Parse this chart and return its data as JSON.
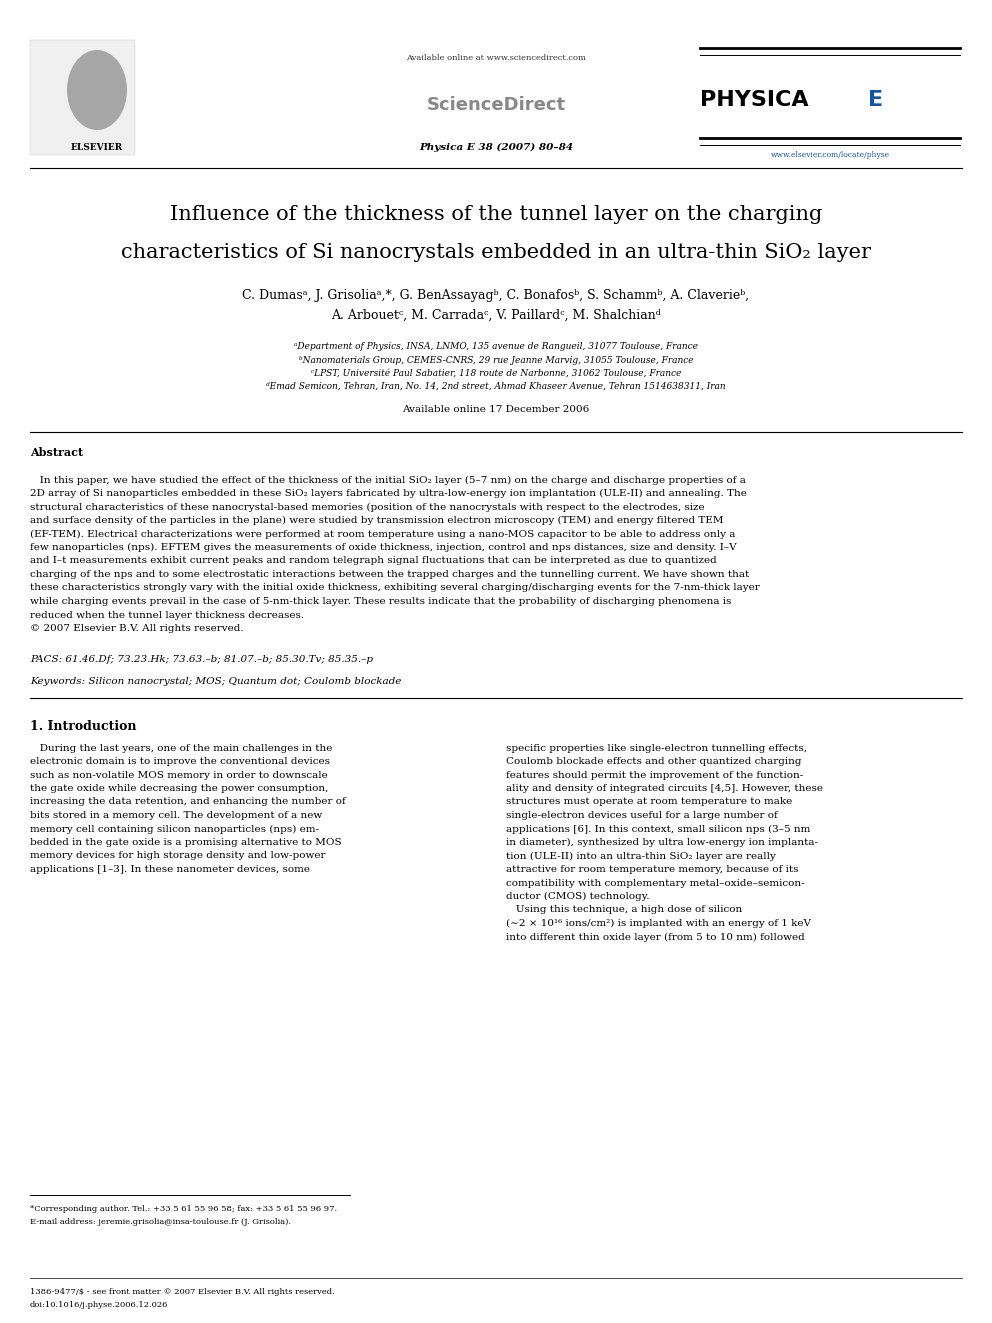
{
  "page_width": 9.92,
  "page_height": 13.23,
  "dpi": 100,
  "background_color": "#ffffff",
  "header": {
    "available_online_text": "Available online at www.sciencedirect.com",
    "sciencedirect_text": "ScienceDirect",
    "journal_text": "Physica E 38 (2007) 80–84",
    "physica_e_text": "PHYSICA E",
    "elsevier_text": "ELSEVIER",
    "url_text": "www.elsevier.com/locate/physe"
  },
  "title_line1": "Influence of the thickness of the tunnel layer on the charging",
  "title_line2": "characteristics of Si nanocrystals embedded in an ultra-thin SiO₂ layer",
  "author_line1": "C. Dumasᵃ, J. Grisoliaᵃ,*, G. BenAssayagᵇ, C. Bonafosᵇ, S. Schammᵇ, A. Claverieᵇ,",
  "author_line2": "A. Arbouetᶜ, M. Carradaᶜ, V. Paillardᶜ, M. Shalchianᵈ",
  "aff1": "ᵃDepartment of Physics, INSA, LNMO, 135 avenue de Rangueil, 31077 Toulouse, France",
  "aff2": "ᵇNanomaterials Group, CEMES-CNRS, 29 rue Jeanne Marvig, 31055 Toulouse, France",
  "aff3": "ᶜLPST, Université Paul Sabatier, 118 route de Narbonne, 31062 Toulouse, France",
  "aff4": "ᵈEmad Semicon, Tehran, Iran, No. 14, 2nd street, Ahmad Khaseer Avenue, Tehran 1514638311, Iran",
  "available_online": "Available online 17 December 2006",
  "abstract_title": "Abstract",
  "abstract_lines": [
    "   In this paper, we have studied the effect of the thickness of the initial SiO₂ layer (5–7 nm) on the charge and discharge properties of a",
    "2D array of Si nanoparticles embedded in these SiO₂ layers fabricated by ultra-low-energy ion implantation (ULE-II) and annealing. The",
    "structural characteristics of these nanocrystal-based memories (position of the nanocrystals with respect to the electrodes, size",
    "and surface density of the particles in the plane) were studied by transmission electron microscopy (TEM) and energy filtered TEM",
    "(EF-TEM). Electrical characterizations were performed at room temperature using a nano-MOS capacitor to be able to address only a",
    "few nanoparticles (nps). EFTEM gives the measurements of oxide thickness, injection, control and nps distances, size and density. I–V",
    "and I–t measurements exhibit current peaks and random telegraph signal fluctuations that can be interpreted as due to quantized",
    "charging of the nps and to some electrostatic interactions between the trapped charges and the tunnelling current. We have shown that",
    "these characteristics strongly vary with the initial oxide thickness, exhibiting several charging/discharging events for the 7-nm-thick layer",
    "while charging events prevail in the case of 5-nm-thick layer. These results indicate that the probability of discharging phenomena is",
    "reduced when the tunnel layer thickness decreases.",
    "© 2007 Elsevier B.V. All rights reserved."
  ],
  "pacs_text": "PACS: 61.46.Df; 73.23.Hk; 73.63.–b; 81.07.–b; 85.30.Tv; 85.35.–p",
  "keywords_text": "Keywords: Silicon nanocrystal; MOS; Quantum dot; Coulomb blockade",
  "intro_title": "1. Introduction",
  "intro_left_lines": [
    "   During the last years, one of the main challenges in the",
    "electronic domain is to improve the conventional devices",
    "such as non-volatile MOS memory in order to downscale",
    "the gate oxide while decreasing the power consumption,",
    "increasing the data retention, and enhancing the number of",
    "bits stored in a memory cell. The development of a new",
    "memory cell containing silicon nanoparticles (nps) em-",
    "bedded in the gate oxide is a promising alternative to MOS",
    "memory devices for high storage density and low-power",
    "applications [1–3]. In these nanometer devices, some"
  ],
  "intro_right_lines": [
    "specific properties like single-electron tunnelling effects,",
    "Coulomb blockade effects and other quantized charging",
    "features should permit the improvement of the function-",
    "ality and density of integrated circuits [4,5]. However, these",
    "structures must operate at room temperature to make",
    "single-electron devices useful for a large number of",
    "applications [6]. In this context, small silicon nps (3–5 nm",
    "in diameter), synthesized by ultra low-energy ion implanta-",
    "tion (ULE-II) into an ultra-thin SiO₂ layer are really",
    "attractive for room temperature memory, because of its",
    "compatibility with complementary metal–oxide–semicon-",
    "ductor (CMOS) technology.",
    "   Using this technique, a high dose of silicon",
    "(∼2 × 10¹⁶ ions/cm²) is implanted with an energy of 1 keV",
    "into different thin oxide layer (from 5 to 10 nm) followed"
  ],
  "footnote_line1": "*Corresponding author. Tel.: +33 5 61 55 96 58; fax: +33 5 61 55 96 97.",
  "footnote_line2": "E-mail address: jeremie.grisolia@insa-toulouse.fr (J. Grisolia).",
  "issn_line1": "1386-9477/$ - see front matter © 2007 Elsevier B.V. All rights reserved.",
  "issn_line2": "doi:10.1016/j.physe.2006.12.026"
}
